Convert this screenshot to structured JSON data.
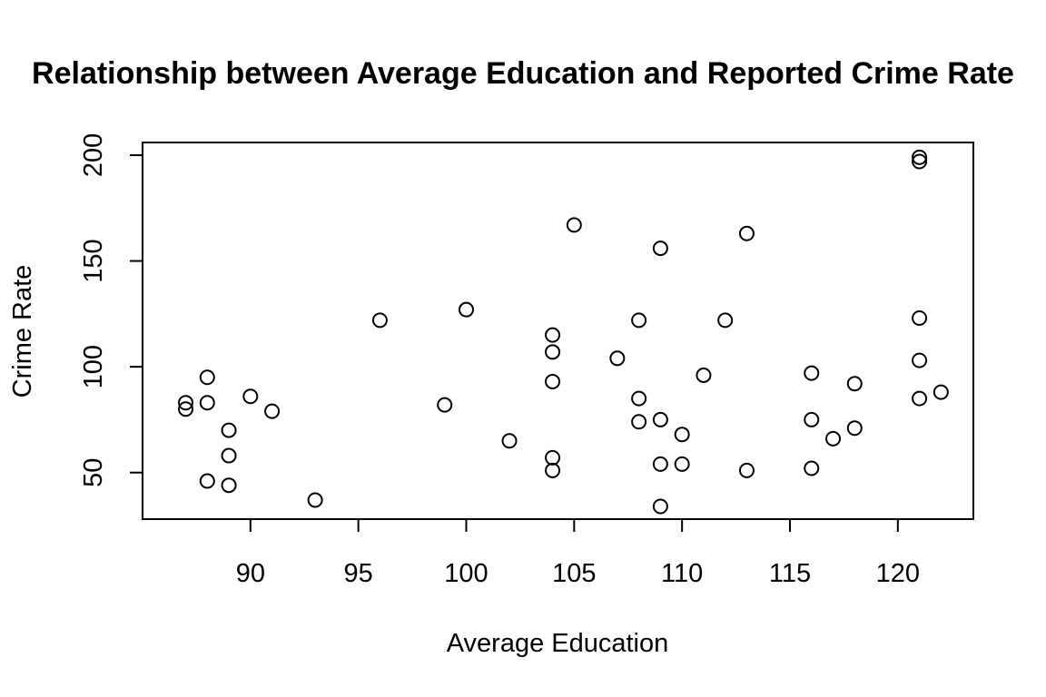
{
  "chart_data": {
    "type": "scatter",
    "title": "Relationship between Average Education and Reported Crime Rate",
    "xlabel": "Average Education",
    "ylabel": "Crime Rate",
    "xlim": [
      85,
      123.5
    ],
    "ylim": [
      28,
      206
    ],
    "x_ticks": [
      90,
      95,
      100,
      105,
      110,
      115,
      120
    ],
    "y_ticks": [
      50,
      100,
      150,
      200
    ],
    "grid": false,
    "points": [
      {
        "x": 87,
        "y": 83
      },
      {
        "x": 87,
        "y": 80
      },
      {
        "x": 88,
        "y": 95
      },
      {
        "x": 88,
        "y": 83
      },
      {
        "x": 88,
        "y": 46
      },
      {
        "x": 89,
        "y": 70
      },
      {
        "x": 89,
        "y": 58
      },
      {
        "x": 89,
        "y": 44
      },
      {
        "x": 90,
        "y": 86
      },
      {
        "x": 91,
        "y": 79
      },
      {
        "x": 93,
        "y": 37
      },
      {
        "x": 96,
        "y": 122
      },
      {
        "x": 99,
        "y": 82
      },
      {
        "x": 100,
        "y": 127
      },
      {
        "x": 102,
        "y": 65
      },
      {
        "x": 104,
        "y": 115
      },
      {
        "x": 104,
        "y": 107
      },
      {
        "x": 104,
        "y": 93
      },
      {
        "x": 104,
        "y": 57
      },
      {
        "x": 104,
        "y": 51
      },
      {
        "x": 105,
        "y": 167
      },
      {
        "x": 107,
        "y": 104
      },
      {
        "x": 108,
        "y": 122
      },
      {
        "x": 108,
        "y": 85
      },
      {
        "x": 108,
        "y": 74
      },
      {
        "x": 109,
        "y": 156
      },
      {
        "x": 109,
        "y": 75
      },
      {
        "x": 109,
        "y": 54
      },
      {
        "x": 109,
        "y": 34
      },
      {
        "x": 110,
        "y": 68
      },
      {
        "x": 110,
        "y": 54
      },
      {
        "x": 111,
        "y": 96
      },
      {
        "x": 112,
        "y": 122
      },
      {
        "x": 113,
        "y": 163
      },
      {
        "x": 113,
        "y": 51
      },
      {
        "x": 116,
        "y": 97
      },
      {
        "x": 116,
        "y": 75
      },
      {
        "x": 116,
        "y": 52
      },
      {
        "x": 117,
        "y": 66
      },
      {
        "x": 118,
        "y": 92
      },
      {
        "x": 118,
        "y": 71
      },
      {
        "x": 121,
        "y": 199
      },
      {
        "x": 121,
        "y": 197
      },
      {
        "x": 121,
        "y": 123
      },
      {
        "x": 121,
        "y": 103
      },
      {
        "x": 121,
        "y": 85
      },
      {
        "x": 122,
        "y": 88
      }
    ]
  }
}
